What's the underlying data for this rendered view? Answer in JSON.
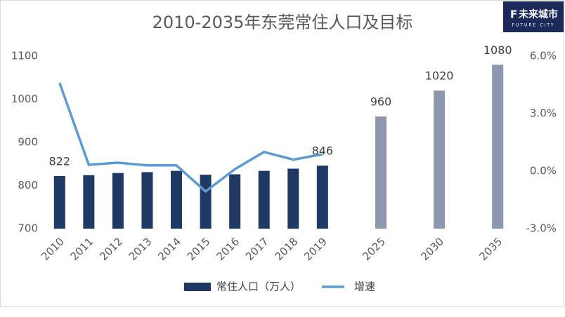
{
  "chart_data": {
    "type": "bar_line",
    "title": "2010-2035年东莞常住人口及目标",
    "logo": {
      "mark": "F",
      "name": "未来城市",
      "sub": "FUTURE CITY"
    },
    "categories": [
      "2010",
      "2011",
      "2012",
      "2013",
      "2014",
      "2015",
      "2016",
      "2017",
      "2018",
      "2019",
      null,
      "2025",
      null,
      "2030",
      null,
      "2035"
    ],
    "series": [
      {
        "name": "常住人口（万人）",
        "kind": "bar",
        "color": "#1f3864",
        "colors": [
          "#1f3864",
          "#1f3864",
          "#1f3864",
          "#1f3864",
          "#1f3864",
          "#1f3864",
          "#1f3864",
          "#1f3864",
          "#1f3864",
          "#1f3864",
          null,
          "#8c98b0",
          null,
          "#8c98b0",
          null,
          "#8c98b0"
        ],
        "values": [
          822,
          824,
          829,
          831,
          834,
          825,
          826,
          834,
          839,
          846,
          null,
          960,
          null,
          1020,
          null,
          1080
        ],
        "value_labels": [
          "822",
          null,
          null,
          null,
          null,
          null,
          null,
          null,
          null,
          "846",
          null,
          "960",
          null,
          "1020",
          null,
          "1080"
        ]
      },
      {
        "name": "增速",
        "kind": "line",
        "axis": "y2",
        "color": "#5b9bd5",
        "values": [
          4.6,
          0.33,
          0.44,
          0.3,
          0.3,
          -1.06,
          0.1,
          1.0,
          0.6,
          0.88,
          null,
          null,
          null,
          null,
          null,
          null
        ]
      }
    ],
    "ylim": [
      700,
      1100
    ],
    "yticks": [
      700,
      800,
      900,
      1000,
      1100
    ],
    "y2lim": [
      -3,
      6
    ],
    "y2ticks": [
      {
        "value": -3,
        "label": "-3.0%"
      },
      {
        "value": 0,
        "label": "0.0%"
      },
      {
        "value": 3,
        "label": "3.0%"
      },
      {
        "value": 6,
        "label": "6.0%"
      }
    ],
    "legend": "bottom"
  }
}
